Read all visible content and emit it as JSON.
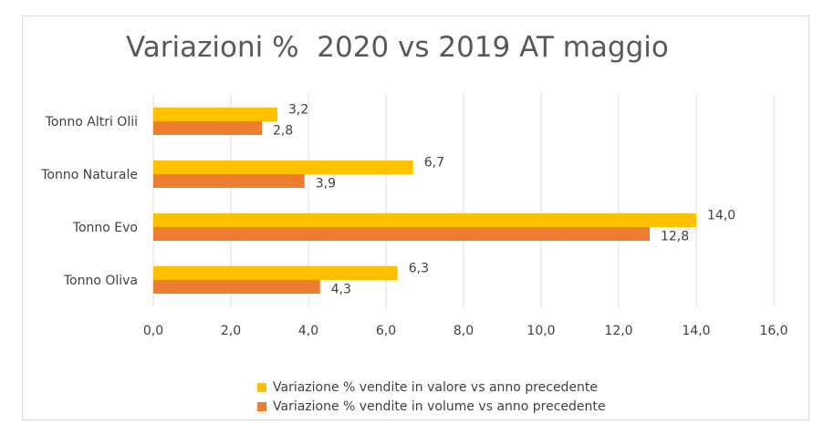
{
  "chart_data": {
    "type": "bar",
    "orientation": "horizontal",
    "title": "Variazioni %  2020 vs 2019 AT maggio",
    "categories": [
      "Tonno Altri Olii",
      "Tonno Naturale",
      "Tonno Evo",
      "Tonno Oliva"
    ],
    "series": [
      {
        "name": "Variazione % vendite in valore vs anno precedente",
        "color": "#ffc000",
        "values": [
          3.2,
          6.7,
          14.0,
          6.3
        ],
        "labels": [
          "3,2",
          "6,7",
          "14,0",
          "6,3"
        ]
      },
      {
        "name": "Variazione % vendite in volume vs anno precedente",
        "color": "#ed7d31",
        "values": [
          2.8,
          3.9,
          12.8,
          4.3
        ],
        "labels": [
          "2,8",
          "3,9",
          "12,8",
          "4,3"
        ]
      }
    ],
    "xlim": [
      0,
      16
    ],
    "xticks": [
      0,
      2,
      4,
      6,
      8,
      10,
      12,
      14,
      16
    ],
    "xtick_labels": [
      "0,0",
      "2,0",
      "4,0",
      "6,0",
      "8,0",
      "10,0",
      "12,0",
      "14,0",
      "16,0"
    ],
    "grid": "vertical",
    "gridline_color": "#d9d9d9",
    "legend_position": "bottom"
  }
}
